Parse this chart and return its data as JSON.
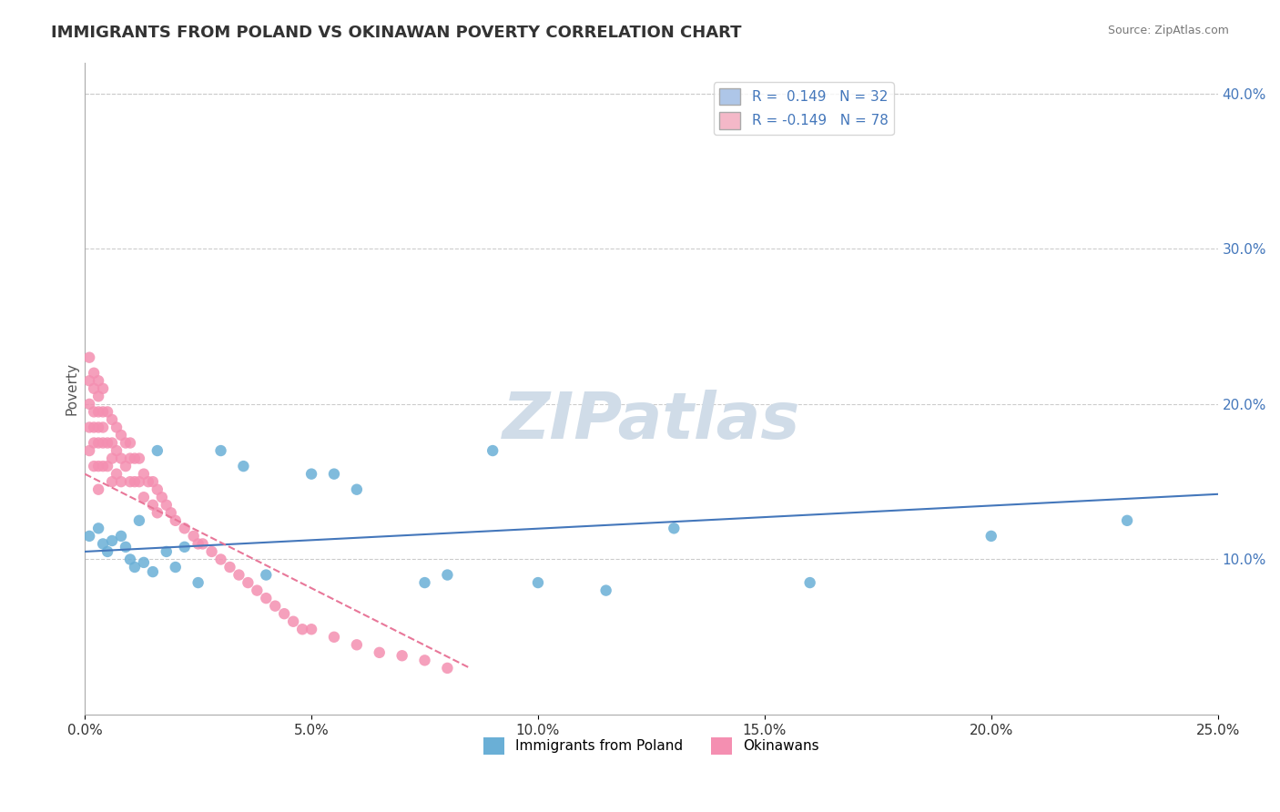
{
  "title": "IMMIGRANTS FROM POLAND VS OKINAWAN POVERTY CORRELATION CHART",
  "source_text": "Source: ZipAtlas.com",
  "xlabel": "",
  "ylabel": "Poverty",
  "xlim": [
    0.0,
    0.25
  ],
  "ylim": [
    0.0,
    0.42
  ],
  "xticks": [
    0.0,
    0.05,
    0.1,
    0.15,
    0.2,
    0.25
  ],
  "xtick_labels": [
    "0.0%",
    "5.0%",
    "10.0%",
    "15.0%",
    "20.0%",
    "25.0%"
  ],
  "yticks_right": [
    0.1,
    0.2,
    0.3,
    0.4
  ],
  "ytick_labels_right": [
    "10.0%",
    "20.0%",
    "30.0%",
    "40.0%"
  ],
  "legend_entries": [
    {
      "label": "R =  0.149   N = 32",
      "color": "#aec6e8"
    },
    {
      "label": "R = -0.149   N = 78",
      "color": "#f4b8c8"
    }
  ],
  "watermark": "ZIPatlas",
  "blue_scatter_x": [
    0.001,
    0.003,
    0.004,
    0.005,
    0.006,
    0.008,
    0.009,
    0.01,
    0.011,
    0.012,
    0.013,
    0.015,
    0.016,
    0.018,
    0.02,
    0.022,
    0.025,
    0.03,
    0.035,
    0.04,
    0.05,
    0.055,
    0.06,
    0.075,
    0.08,
    0.09,
    0.1,
    0.115,
    0.13,
    0.16,
    0.2,
    0.23
  ],
  "blue_scatter_y": [
    0.115,
    0.12,
    0.11,
    0.105,
    0.112,
    0.115,
    0.108,
    0.1,
    0.095,
    0.125,
    0.098,
    0.092,
    0.17,
    0.105,
    0.095,
    0.108,
    0.085,
    0.17,
    0.16,
    0.09,
    0.155,
    0.155,
    0.145,
    0.085,
    0.09,
    0.17,
    0.085,
    0.08,
    0.12,
    0.085,
    0.115,
    0.125
  ],
  "pink_scatter_x": [
    0.001,
    0.001,
    0.001,
    0.001,
    0.001,
    0.002,
    0.002,
    0.002,
    0.002,
    0.002,
    0.002,
    0.003,
    0.003,
    0.003,
    0.003,
    0.003,
    0.003,
    0.003,
    0.004,
    0.004,
    0.004,
    0.004,
    0.004,
    0.005,
    0.005,
    0.005,
    0.006,
    0.006,
    0.006,
    0.006,
    0.007,
    0.007,
    0.007,
    0.008,
    0.008,
    0.008,
    0.009,
    0.009,
    0.01,
    0.01,
    0.01,
    0.011,
    0.011,
    0.012,
    0.012,
    0.013,
    0.013,
    0.014,
    0.015,
    0.015,
    0.016,
    0.016,
    0.017,
    0.018,
    0.019,
    0.02,
    0.022,
    0.024,
    0.025,
    0.026,
    0.028,
    0.03,
    0.032,
    0.034,
    0.036,
    0.038,
    0.04,
    0.042,
    0.044,
    0.046,
    0.048,
    0.05,
    0.055,
    0.06,
    0.065,
    0.07,
    0.075,
    0.08
  ],
  "pink_scatter_y": [
    0.23,
    0.215,
    0.2,
    0.185,
    0.17,
    0.22,
    0.21,
    0.195,
    0.185,
    0.175,
    0.16,
    0.215,
    0.205,
    0.195,
    0.185,
    0.175,
    0.16,
    0.145,
    0.21,
    0.195,
    0.185,
    0.175,
    0.16,
    0.195,
    0.175,
    0.16,
    0.19,
    0.175,
    0.165,
    0.15,
    0.185,
    0.17,
    0.155,
    0.18,
    0.165,
    0.15,
    0.175,
    0.16,
    0.175,
    0.165,
    0.15,
    0.165,
    0.15,
    0.165,
    0.15,
    0.155,
    0.14,
    0.15,
    0.15,
    0.135,
    0.145,
    0.13,
    0.14,
    0.135,
    0.13,
    0.125,
    0.12,
    0.115,
    0.11,
    0.11,
    0.105,
    0.1,
    0.095,
    0.09,
    0.085,
    0.08,
    0.075,
    0.07,
    0.065,
    0.06,
    0.055,
    0.055,
    0.05,
    0.045,
    0.04,
    0.038,
    0.035,
    0.03
  ],
  "blue_line_x": [
    0.0,
    0.25
  ],
  "blue_line_y": [
    0.105,
    0.142
  ],
  "pink_line_x": [
    0.0,
    0.085
  ],
  "pink_line_y": [
    0.155,
    0.03
  ],
  "blue_color": "#6aafd6",
  "pink_color": "#f48fb1",
  "blue_line_color": "#4477bb",
  "pink_line_color": "#e87799",
  "background_color": "#ffffff",
  "grid_color": "#cccccc",
  "title_color": "#333333",
  "title_fontsize": 13,
  "axis_label_color": "#555555",
  "right_axis_color": "#4477bb",
  "watermark_color": "#d0dce8",
  "legend_border_color": "#cccccc"
}
